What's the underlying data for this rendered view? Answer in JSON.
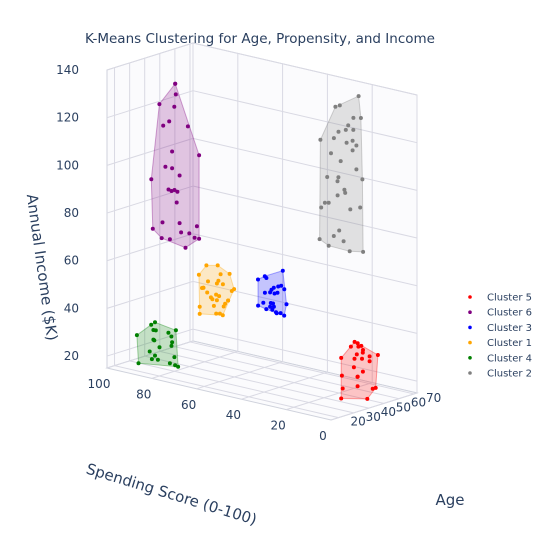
{
  "chart_data": {
    "type": "scatter3d",
    "title": "K-Means Clustering for Age, Propensity, and Income",
    "axes": {
      "x": {
        "label": "Age",
        "range": [
          15,
          72
        ],
        "ticks": [
          20,
          30,
          40,
          50,
          60,
          70
        ]
      },
      "y": {
        "label": "Spending Score (0-100)",
        "range": [
          0,
          100
        ],
        "ticks": [
          0,
          20,
          40,
          60,
          80,
          100
        ]
      },
      "z": {
        "label": "Annual Income ($K)",
        "range": [
          15,
          140
        ],
        "ticks": [
          20,
          40,
          60,
          80,
          100,
          120,
          140
        ]
      }
    },
    "legend": {
      "position": "right",
      "entries": [
        {
          "name": "Cluster 5",
          "color": "#ff0000"
        },
        {
          "name": "Cluster 6",
          "color": "#800080"
        },
        {
          "name": "Cluster 3",
          "color": "#0000ff"
        },
        {
          "name": "Cluster 1",
          "color": "#ffa500"
        },
        {
          "name": "Cluster 4",
          "color": "#008000"
        },
        {
          "name": "Cluster 2",
          "color": "#808080"
        }
      ]
    },
    "series": [
      {
        "name": "Cluster 5",
        "color": "#ff0000",
        "x": [
          44,
          51,
          46,
          43,
          48,
          52,
          46,
          45,
          44,
          48,
          51,
          45,
          40,
          47,
          53,
          48,
          54,
          44,
          45,
          41,
          52,
          55,
          43,
          44,
          55
        ],
        "y": [
          8,
          7,
          12,
          14,
          8,
          13,
          9,
          15,
          6,
          6,
          12,
          6,
          5,
          11,
          7,
          5,
          12,
          15,
          10,
          7,
          13,
          7,
          5,
          15,
          6
        ],
        "z": [
          35,
          33,
          37,
          25,
          27,
          37,
          21,
          19,
          39,
          16,
          36,
          36,
          27,
          39,
          19,
          32,
          34,
          15,
          29,
          34,
          23,
          19,
          34,
          32,
          33
        ]
      },
      {
        "name": "Cluster 6",
        "color": "#800080",
        "x": [
          32,
          25,
          28,
          33,
          31,
          26,
          27,
          24,
          24,
          26,
          28,
          33,
          27,
          32,
          32,
          24,
          26,
          33,
          27,
          26,
          30,
          28,
          33,
          33,
          27,
          28,
          29,
          33,
          24,
          29
        ],
        "y": [
          84,
          76,
          81,
          71,
          82,
          83,
          83,
          76,
          71,
          84,
          84,
          82,
          79,
          81,
          81,
          77,
          75,
          76,
          82,
          76,
          71,
          72,
          72,
          81,
          80,
          89,
          89,
          71,
          73,
          77
        ],
        "z": [
          90,
          133,
          120,
          107,
          90,
          71,
          118,
          128,
          70,
          127,
          77,
          90,
          108,
          135,
          135,
          102,
          99,
          118,
          101,
          92,
          73,
          75,
          77,
          85,
          71,
          94,
          73,
          72,
          76,
          78
        ]
      },
      {
        "name": "Cluster 3",
        "color": "#0000ff",
        "x": [
          37,
          29,
          35,
          36,
          29,
          32,
          34,
          38,
          39,
          33,
          33,
          30,
          34,
          36,
          33,
          38,
          37,
          35,
          32,
          29,
          34,
          29,
          33,
          31,
          38,
          28
        ],
        "y": [
          42,
          33,
          35,
          43,
          34,
          41,
          38,
          41,
          37,
          38,
          33,
          34,
          43,
          34,
          41,
          38,
          42,
          39,
          44,
          36,
          39,
          42,
          39,
          35,
          45,
          31
        ],
        "z": [
          49,
          61,
          66,
          61,
          50,
          63,
          56,
          49,
          57,
          52,
          48,
          58,
          51,
          52,
          49,
          47,
          55,
          58,
          50,
          59,
          49,
          62,
          52,
          49,
          54,
          62
        ]
      },
      {
        "name": "Cluster 1",
        "color": "#ffa500",
        "x": [
          24,
          22,
          20,
          28,
          27,
          21,
          21,
          21,
          20,
          21,
          22,
          26,
          20,
          26,
          21,
          22,
          22,
          22,
          27,
          25,
          26,
          24,
          25,
          27,
          22,
          21,
          25,
          22,
          20,
          25
        ],
        "y": [
          52,
          53,
          57,
          52,
          56,
          61,
          63,
          50,
          59,
          57,
          50,
          58,
          62,
          57,
          61,
          52,
          56,
          55,
          63,
          55,
          65,
          57,
          51,
          59,
          60,
          54,
          59,
          54,
          62,
          58
        ],
        "z": [
          52,
          46,
          53,
          56,
          48,
          56,
          61,
          53,
          66,
          52,
          64,
          65,
          45,
          45,
          56,
          51,
          54,
          60,
          57,
          58,
          54,
          51,
          56,
          57,
          54,
          54,
          48,
          63,
          48,
          45
        ]
      },
      {
        "name": "Cluster 4",
        "color": "#008000",
        "x": [
          25,
          26,
          27,
          31,
          28,
          31,
          24,
          31,
          20,
          21,
          27,
          29,
          22,
          24,
          25,
          23,
          28,
          25,
          30,
          29,
          21,
          32
        ],
        "y": [
          84,
          77,
          79,
          89,
          77,
          80,
          78,
          82,
          90,
          85,
          78,
          86,
          84,
          86,
          87,
          78,
          80,
          86,
          89,
          88,
          90,
          90
        ],
        "z": [
          20,
          19,
          28,
          30,
          18,
          32,
          20,
          25,
          30,
          24,
          22,
          24,
          29,
          20,
          34,
          33,
          30,
          32,
          26,
          34,
          18,
          19
        ]
      },
      {
        "name": "Cluster 2",
        "color": "#808080",
        "x": [
          61,
          55,
          58,
          54,
          61,
          52,
          56,
          66,
          63,
          55,
          65,
          62,
          59,
          66,
          62,
          66,
          57,
          57,
          60,
          61,
          60,
          55,
          67,
          61,
          58,
          66,
          67,
          57,
          56,
          63,
          53,
          58,
          52,
          60,
          60,
          59,
          63
        ],
        "y": [
          21,
          20,
          19,
          25,
          31,
          30,
          22,
          20,
          21,
          23,
          30,
          22,
          21,
          28,
          24,
          23,
          33,
          31,
          32,
          32,
          27,
          25,
          22,
          32,
          26,
          31,
          21,
          27,
          32,
          24,
          19,
          23,
          22,
          18,
          26,
          20,
          19
        ],
        "z": [
          128,
          119,
          124,
          79,
          111,
          77,
          77,
          71,
          106,
          134,
          78,
          118,
          90,
          94,
          124,
          115,
          117,
          91,
          101,
          72,
          102,
          133,
          89,
          90,
          95,
          119,
          101,
          119,
          89,
          71,
          125,
          98,
          103,
          138,
          109,
          115,
          128
        ]
      }
    ]
  }
}
